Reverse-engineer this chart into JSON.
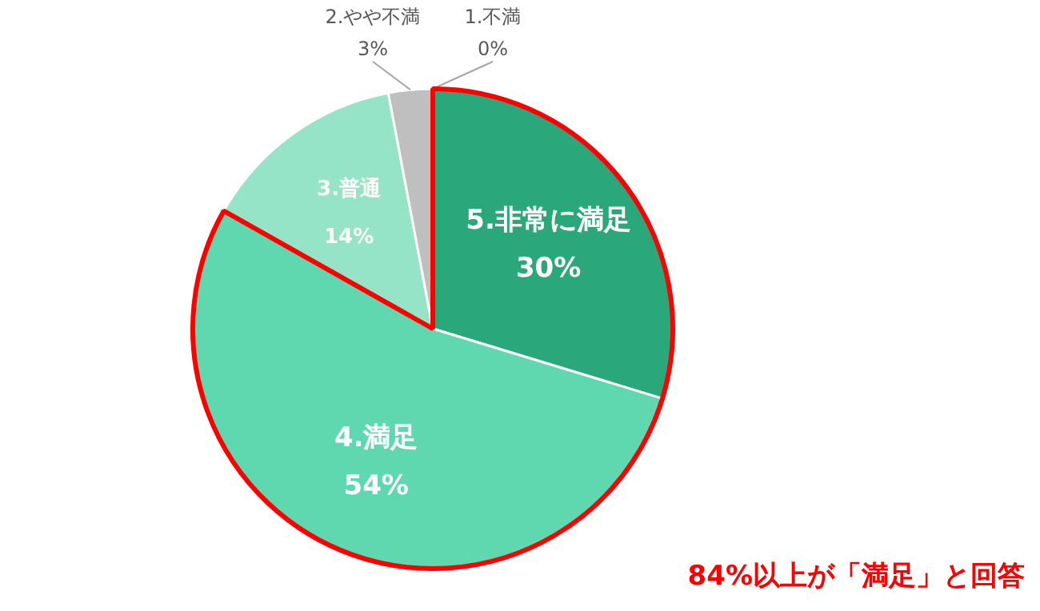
{
  "chart_data": {
    "type": "pie",
    "categories": [
      "5.非常に満足",
      "4.満足",
      "3.普通",
      "2.やや不満",
      "1.不満"
    ],
    "values": [
      30,
      54,
      14,
      3,
      0
    ],
    "value_labels": [
      "30%",
      "54%",
      "14%",
      "3%",
      "0%"
    ],
    "colors": [
      "#2ba87b",
      "#5fd8af",
      "#95e4c7",
      "#bfbfbf",
      "#a6a6a6"
    ],
    "annotations": [
      "84%以上が「満足」と回答"
    ]
  }
}
